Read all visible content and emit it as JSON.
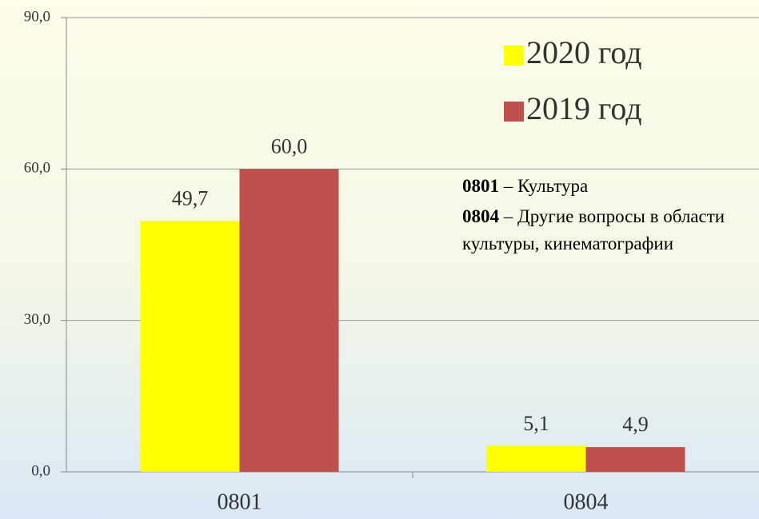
{
  "chart_data": {
    "type": "bar",
    "categories": [
      "0801",
      "0804"
    ],
    "series": [
      {
        "name": "2020 год",
        "color": "#ffff00",
        "values": [
          49.7,
          5.1
        ],
        "value_labels": [
          "49,7",
          "5,1"
        ]
      },
      {
        "name": "2019 год",
        "color": "#c0504d",
        "values": [
          60.0,
          4.9
        ],
        "value_labels": [
          "60,0",
          "4,9"
        ]
      }
    ],
    "ylim": [
      0,
      90
    ],
    "yticks": [
      {
        "value": 0,
        "label": "0,0"
      },
      {
        "value": 30,
        "label": "30,0"
      },
      {
        "value": 60,
        "label": "60,0"
      },
      {
        "value": 90,
        "label": "90,0"
      }
    ],
    "grid": true,
    "legend": "top-right",
    "annotations": [
      {
        "code": "0801",
        "text": "– Культура"
      },
      {
        "code": "0804",
        "text": "– Другие вопросы в области культуры, кинематографии"
      }
    ]
  }
}
